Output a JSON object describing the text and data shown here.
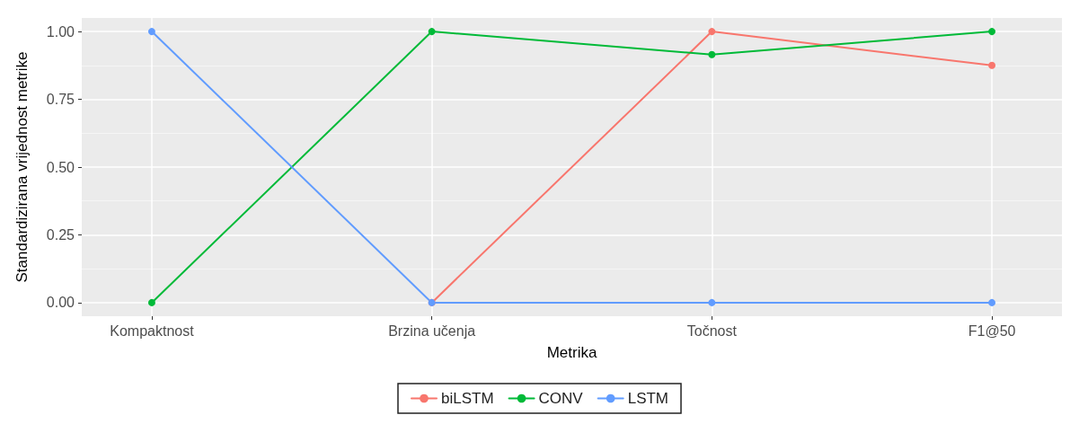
{
  "chart_data": {
    "type": "line",
    "xlabel": "Metrika",
    "ylabel": "Standardizirana vrijednost metrike",
    "categories": [
      "Kompaktnost",
      "Brzina učenja",
      "Točnost",
      "F1@50"
    ],
    "series": [
      {
        "name": "biLSTM",
        "color": "#f8766d",
        "values": [
          null,
          0,
          1,
          0.875
        ]
      },
      {
        "name": "CONV",
        "color": "#00ba38",
        "values": [
          0,
          1,
          0.915,
          1
        ]
      },
      {
        "name": "LSTM",
        "color": "#619cff",
        "values": [
          1,
          0,
          0,
          0
        ]
      }
    ],
    "ylim": [
      -0.05,
      1.05
    ],
    "yticks": [
      {
        "value": 0,
        "label": "0.00"
      },
      {
        "value": 0.25,
        "label": "0.25"
      },
      {
        "value": 0.5,
        "label": "0.50"
      },
      {
        "value": 0.75,
        "label": "0.75"
      },
      {
        "value": 1,
        "label": "1.00"
      }
    ],
    "grid": true,
    "legend": "bottom",
    "marker": "circle",
    "line_style": "solid"
  }
}
